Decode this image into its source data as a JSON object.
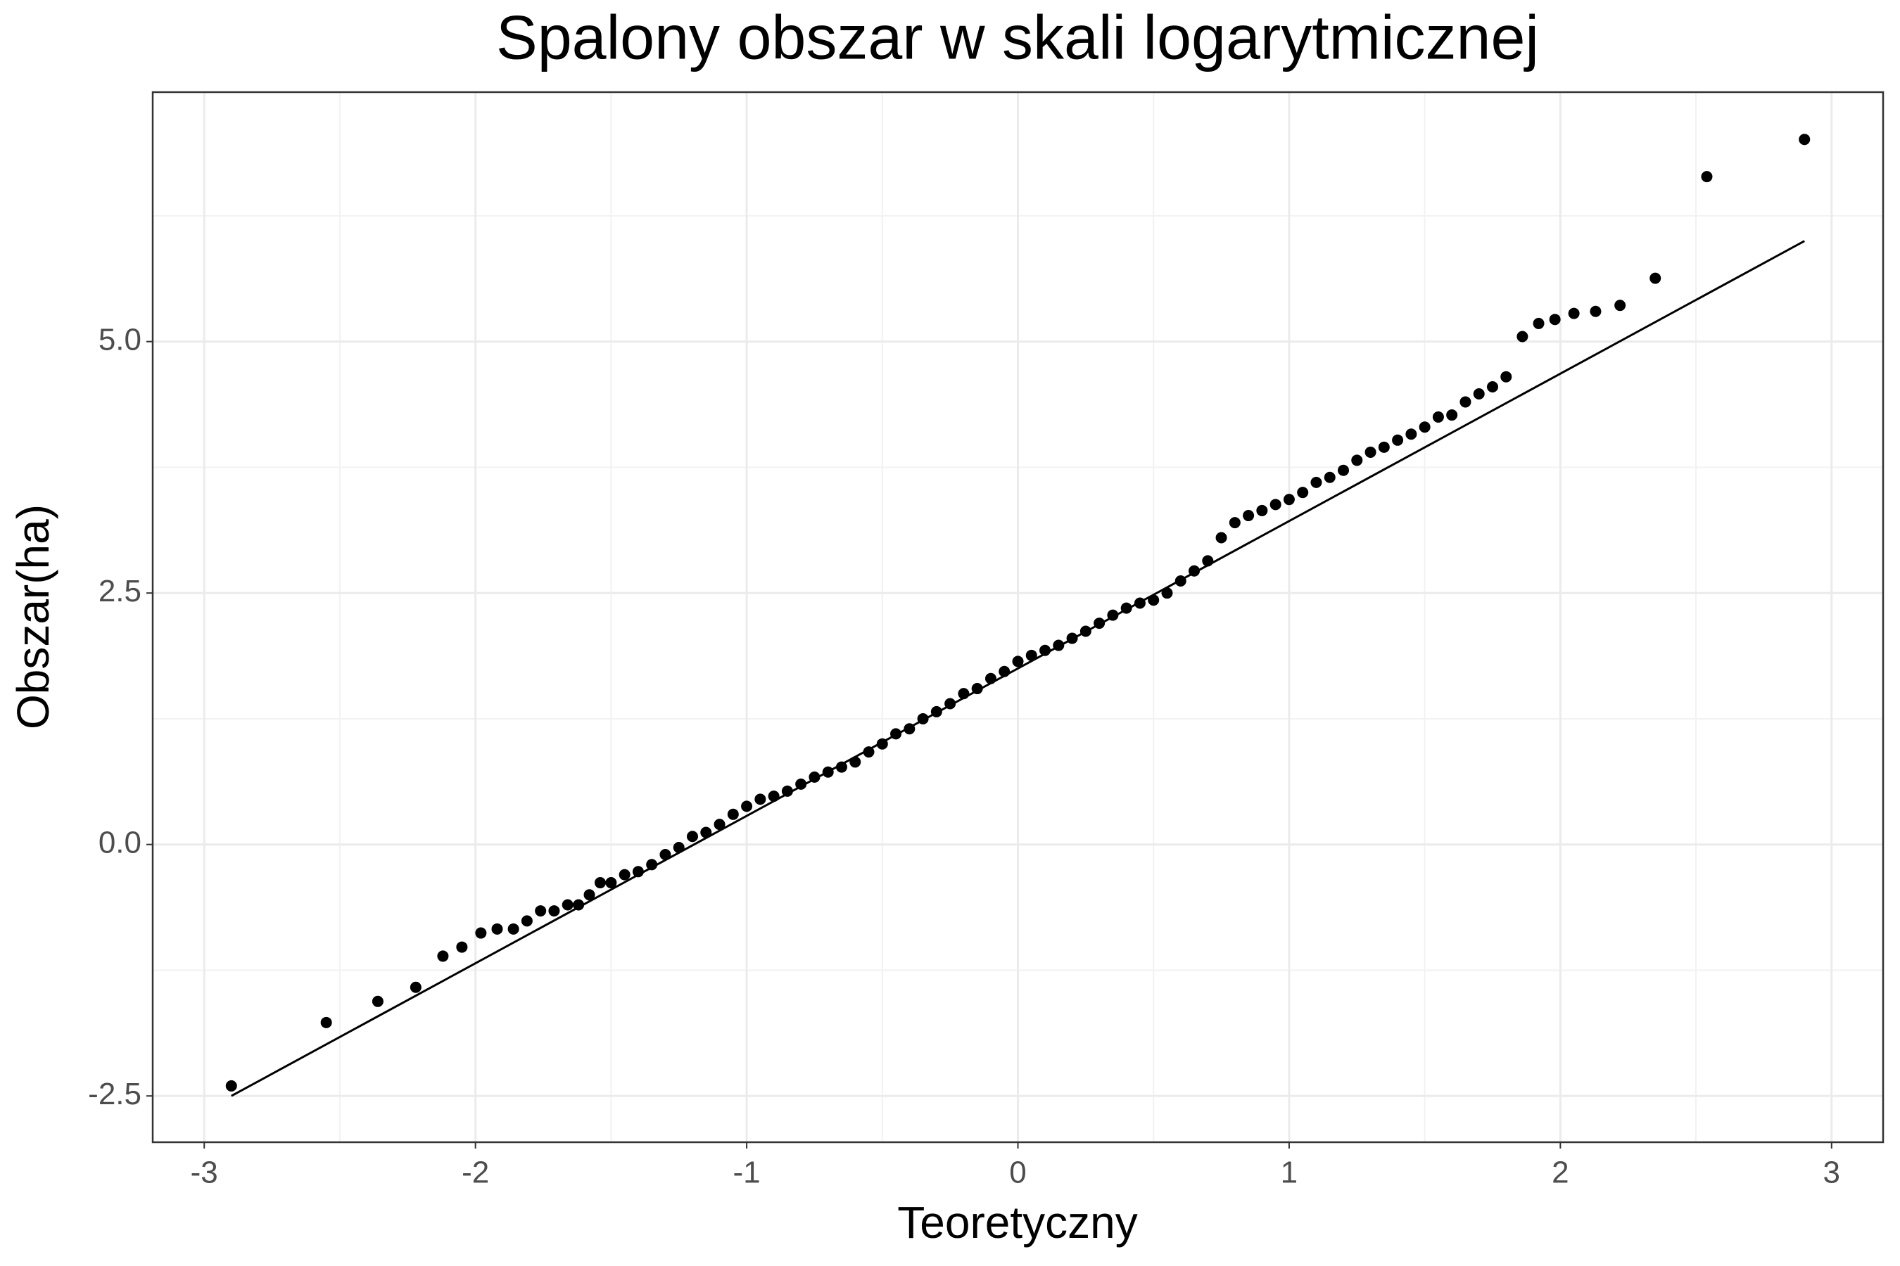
{
  "chart_data": {
    "type": "scatter",
    "title": "Spalony obszar w skali logarytmicznej",
    "x_label": "Teoretyczny",
    "y_label": "Obszar(ha)",
    "color": "#000000",
    "x": [
      -2.9,
      -2.55,
      -2.36,
      -2.22,
      -2.12,
      -2.05,
      -1.98,
      -1.92,
      -1.86,
      -1.81,
      -1.76,
      -1.71,
      -1.66,
      -1.62,
      -1.58,
      -1.54,
      -1.5,
      -1.45,
      -1.4,
      -1.35,
      -1.3,
      -1.25,
      -1.2,
      -1.15,
      -1.1,
      -1.05,
      -1.0,
      -0.95,
      -0.9,
      -0.85,
      -0.8,
      -0.75,
      -0.7,
      -0.65,
      -0.6,
      -0.55,
      -0.5,
      -0.45,
      -0.4,
      -0.35,
      -0.3,
      -0.25,
      -0.2,
      -0.15,
      -0.1,
      -0.05,
      0,
      0.05,
      0.1,
      0.15,
      0.2,
      0.25,
      0.3,
      0.35,
      0.4,
      0.45,
      0.5,
      0.55,
      0.6,
      0.65,
      0.7,
      0.75,
      0.8,
      0.85,
      0.9,
      0.95,
      1.0,
      1.05,
      1.1,
      1.15,
      1.2,
      1.25,
      1.3,
      1.35,
      1.4,
      1.45,
      1.5,
      1.55,
      1.6,
      1.65,
      1.7,
      1.75,
      1.8,
      1.86,
      1.92,
      1.98,
      2.05,
      2.13,
      2.22,
      2.35,
      2.54,
      2.9
    ],
    "values": [
      -2.4,
      -1.77,
      -1.56,
      -1.42,
      -1.11,
      -1.02,
      -0.88,
      -0.84,
      -0.84,
      -0.76,
      -0.66,
      -0.66,
      -0.6,
      -0.6,
      -0.5,
      -0.38,
      -0.38,
      -0.3,
      -0.27,
      -0.2,
      -0.1,
      -0.03,
      0.08,
      0.12,
      0.2,
      0.3,
      0.38,
      0.45,
      0.48,
      0.53,
      0.6,
      0.67,
      0.72,
      0.77,
      0.82,
      0.92,
      1.0,
      1.1,
      1.15,
      1.25,
      1.32,
      1.4,
      1.5,
      1.55,
      1.65,
      1.72,
      1.82,
      1.88,
      1.93,
      1.98,
      2.05,
      2.12,
      2.2,
      2.28,
      2.35,
      2.4,
      2.43,
      2.5,
      2.62,
      2.72,
      2.82,
      3.05,
      3.2,
      3.27,
      3.32,
      3.38,
      3.43,
      3.5,
      3.6,
      3.65,
      3.72,
      3.82,
      3.9,
      3.95,
      4.02,
      4.08,
      4.15,
      4.25,
      4.27,
      4.4,
      4.48,
      4.55,
      4.65,
      5.05,
      5.18,
      5.22,
      5.28,
      5.3,
      5.36,
      5.63,
      6.64,
      7.01
    ],
    "reference_line": {
      "x": [
        -2.9,
        2.9
      ],
      "values": [
        -2.5,
        6.0
      ]
    },
    "xlim": [
      -3.19,
      3.19
    ],
    "ylim": [
      -2.96,
      7.48
    ],
    "xticks": [
      -3,
      -2,
      -1,
      0,
      1,
      2,
      3
    ],
    "yticks": [
      -2.5,
      {
        "value": 0,
        "label": "0.0"
      },
      2.5,
      {
        "value": 5,
        "label": "5.0"
      }
    ],
    "grid": true
  }
}
